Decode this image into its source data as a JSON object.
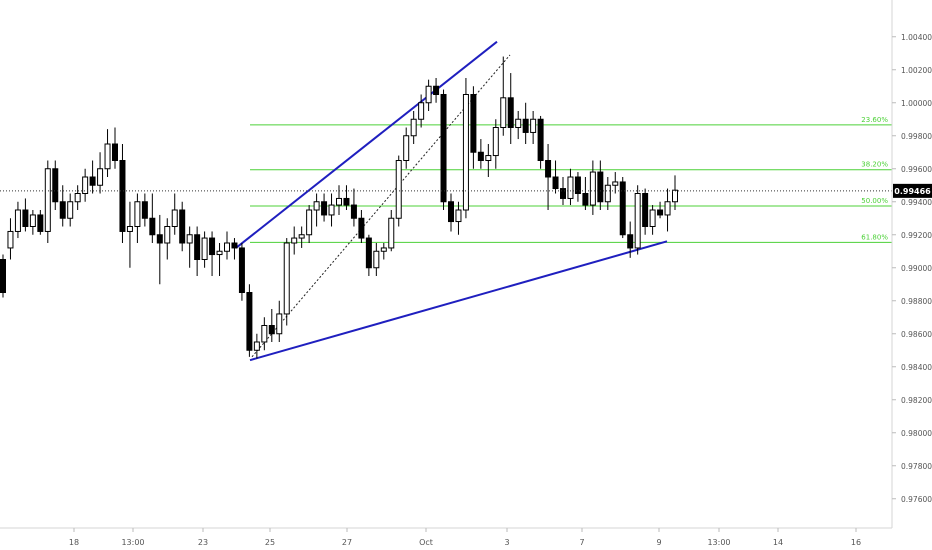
{
  "chart_data": {
    "type": "candlestick",
    "y_axis": {
      "ylim": [
        0.9737,
        1.0049
      ],
      "ticks": [
        "1.00400",
        "1.00200",
        "1.00000",
        "0.99800",
        "0.99600",
        "0.99400",
        "0.99200",
        "0.99000",
        "0.98800",
        "0.98600",
        "0.98400",
        "0.98200",
        "0.98000",
        "0.97800",
        "0.97600"
      ]
    },
    "x_axis": {
      "tick_labels": [
        "18",
        "13:00",
        "23",
        "25",
        "27",
        "Oct",
        "3",
        "7",
        "9",
        "13:00",
        "14",
        "16"
      ]
    },
    "current_price": {
      "label": "0.99466",
      "value": 0.99466
    },
    "fibonacci": [
      {
        "label": "23.60%",
        "value": 0.99866
      },
      {
        "label": "38.20%",
        "value": 0.99594
      },
      {
        "label": "50.00%",
        "value": 0.99374
      },
      {
        "label": "61.80%",
        "value": 0.99154
      }
    ],
    "trendlines": [
      {
        "style": "solid",
        "color": "#1f1fbf",
        "from": [
          0.9912
        ],
        "to": [
          1.0037
        ]
      },
      {
        "style": "solid",
        "color": "#1f1fbf",
        "from": [
          0.9844
        ],
        "to": [
          0.9916
        ]
      },
      {
        "style": "dotted",
        "color": "#222222",
        "from": [
          0.9846
        ],
        "to": [
          1.0029
        ]
      }
    ],
    "candles": [
      [
        0.9905,
        0.9908,
        0.9882,
        0.9885
      ],
      [
        0.9912,
        0.993,
        0.9905,
        0.9922
      ],
      [
        0.9922,
        0.994,
        0.9918,
        0.9935
      ],
      [
        0.9935,
        0.9942,
        0.9922,
        0.9925
      ],
      [
        0.9925,
        0.9935,
        0.992,
        0.9932
      ],
      [
        0.9932,
        0.9935,
        0.992,
        0.9922
      ],
      [
        0.9922,
        0.9965,
        0.9915,
        0.996
      ],
      [
        0.996,
        0.9965,
        0.9935,
        0.994
      ],
      [
        0.994,
        0.995,
        0.9925,
        0.993
      ],
      [
        0.993,
        0.9945,
        0.9925,
        0.994
      ],
      [
        0.994,
        0.995,
        0.9935,
        0.9945
      ],
      [
        0.9945,
        0.996,
        0.994,
        0.9955
      ],
      [
        0.9955,
        0.9965,
        0.9945,
        0.995
      ],
      [
        0.995,
        0.997,
        0.9945,
        0.996
      ],
      [
        0.996,
        0.9984,
        0.9955,
        0.9975
      ],
      [
        0.9975,
        0.9985,
        0.996,
        0.9965
      ],
      [
        0.9965,
        0.9975,
        0.9915,
        0.9922
      ],
      [
        0.9922,
        0.994,
        0.99,
        0.9925
      ],
      [
        0.9925,
        0.9945,
        0.9915,
        0.994
      ],
      [
        0.994,
        0.9945,
        0.9925,
        0.993
      ],
      [
        0.993,
        0.9945,
        0.9915,
        0.992
      ],
      [
        0.992,
        0.9932,
        0.989,
        0.9915
      ],
      [
        0.9915,
        0.993,
        0.9905,
        0.9925
      ],
      [
        0.9925,
        0.9945,
        0.992,
        0.9935
      ],
      [
        0.9935,
        0.994,
        0.991,
        0.9915
      ],
      [
        0.9915,
        0.9925,
        0.99,
        0.992
      ],
      [
        0.992,
        0.9925,
        0.9895,
        0.9905
      ],
      [
        0.9905,
        0.9922,
        0.99,
        0.9918
      ],
      [
        0.9918,
        0.9922,
        0.9895,
        0.9908
      ],
      [
        0.9908,
        0.9915,
        0.9895,
        0.991
      ],
      [
        0.991,
        0.9922,
        0.9905,
        0.9915
      ],
      [
        0.9915,
        0.9918,
        0.9905,
        0.9912
      ],
      [
        0.9912,
        0.9915,
        0.988,
        0.9885
      ],
      [
        0.9885,
        0.989,
        0.9846,
        0.985
      ],
      [
        0.985,
        0.986,
        0.9845,
        0.9855
      ],
      [
        0.9855,
        0.987,
        0.985,
        0.9865
      ],
      [
        0.9865,
        0.9875,
        0.9855,
        0.986
      ],
      [
        0.986,
        0.988,
        0.9855,
        0.9872
      ],
      [
        0.9872,
        0.9918,
        0.9865,
        0.9915
      ],
      [
        0.9915,
        0.9925,
        0.9908,
        0.9918
      ],
      [
        0.9918,
        0.9925,
        0.9912,
        0.992
      ],
      [
        0.992,
        0.9938,
        0.9915,
        0.9935
      ],
      [
        0.9935,
        0.9945,
        0.9925,
        0.994
      ],
      [
        0.994,
        0.9945,
        0.9928,
        0.9932
      ],
      [
        0.9932,
        0.9945,
        0.9925,
        0.9938
      ],
      [
        0.9938,
        0.995,
        0.9932,
        0.9942
      ],
      [
        0.9942,
        0.995,
        0.9935,
        0.9938
      ],
      [
        0.9938,
        0.9948,
        0.9925,
        0.993
      ],
      [
        0.993,
        0.9935,
        0.9915,
        0.9918
      ],
      [
        0.9918,
        0.992,
        0.9895,
        0.99
      ],
      [
        0.99,
        0.9915,
        0.9895,
        0.991
      ],
      [
        0.991,
        0.9915,
        0.9905,
        0.9912
      ],
      [
        0.9912,
        0.9935,
        0.991,
        0.993
      ],
      [
        0.993,
        0.9968,
        0.9925,
        0.9965
      ],
      [
        0.9965,
        0.9985,
        0.996,
        0.998
      ],
      [
        0.998,
        0.9995,
        0.9975,
        0.999
      ],
      [
        0.999,
        1.0005,
        0.9985,
        1.0
      ],
      [
        1.0,
        1.0014,
        0.9995,
        1.001
      ],
      [
        1.001,
        1.0015,
        1.0,
        1.0005
      ],
      [
        1.0005,
        1.0008,
        0.9935,
        0.994
      ],
      [
        0.994,
        0.9945,
        0.9922,
        0.9928
      ],
      [
        0.9928,
        0.994,
        0.992,
        0.9935
      ],
      [
        0.9935,
        1.0015,
        0.993,
        1.0005
      ],
      [
        1.0005,
        1.001,
        0.996,
        0.997
      ],
      [
        0.997,
        0.9978,
        0.996,
        0.9965
      ],
      [
        0.9965,
        0.9975,
        0.9955,
        0.9968
      ],
      [
        0.9968,
        0.999,
        0.996,
        0.9985
      ],
      [
        0.9985,
        1.0028,
        0.998,
        1.0003
      ],
      [
        1.0003,
        1.0018,
        0.9975,
        0.9985
      ],
      [
        0.9985,
        0.9995,
        0.9978,
        0.999
      ],
      [
        0.999,
        1.0,
        0.9975,
        0.9982
      ],
      [
        0.9982,
        0.9995,
        0.9975,
        0.999
      ],
      [
        0.999,
        0.9992,
        0.996,
        0.9965
      ],
      [
        0.9965,
        0.9975,
        0.9935,
        0.9955
      ],
      [
        0.9955,
        0.9965,
        0.9945,
        0.9948
      ],
      [
        0.9948,
        0.9955,
        0.9938,
        0.9942
      ],
      [
        0.9942,
        0.996,
        0.9938,
        0.9955
      ],
      [
        0.9955,
        0.9958,
        0.994,
        0.9945
      ],
      [
        0.9945,
        0.9955,
        0.9935,
        0.9938
      ],
      [
        0.9938,
        0.9965,
        0.9932,
        0.9958
      ],
      [
        0.9958,
        0.9965,
        0.9935,
        0.994
      ],
      [
        0.994,
        0.9955,
        0.9935,
        0.995
      ],
      [
        0.995,
        0.9958,
        0.9945,
        0.9952
      ],
      [
        0.9952,
        0.9955,
        0.9918,
        0.992
      ],
      [
        0.992,
        0.9928,
        0.9906,
        0.9912
      ],
      [
        0.9912,
        0.995,
        0.9908,
        0.9945
      ],
      [
        0.9945,
        0.9948,
        0.992,
        0.9925
      ],
      [
        0.9925,
        0.9938,
        0.992,
        0.9935
      ],
      [
        0.9935,
        0.994,
        0.993,
        0.9932
      ],
      [
        0.9932,
        0.9948,
        0.9922,
        0.994
      ],
      [
        0.994,
        0.9956,
        0.9935,
        0.9947
      ]
    ]
  }
}
